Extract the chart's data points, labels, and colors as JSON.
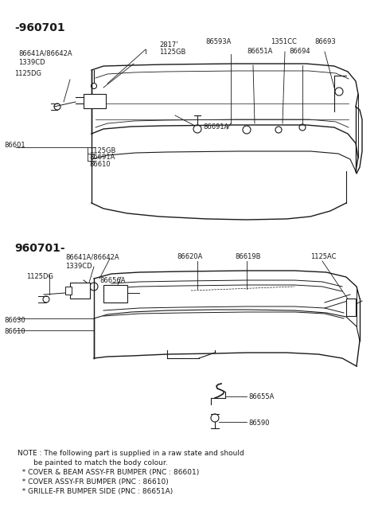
{
  "background_color": "#ffffff",
  "line_color": "#1a1a1a",
  "text_color": "#1a1a1a",
  "section1_label": "-960701",
  "section2_label": "960701-",
  "note_line1": "NOTE : The following part is supplied in a raw state and should",
  "note_line2": "       be painted to match the body colour.",
  "note_line3": "  * COVER & BEAM ASSY-FR BUMPER (PNC : 86601)",
  "note_line4": "  * COVER ASSY-FR BUMPER (PNC : 86610)",
  "note_line5": "  * GRILLE-FR BUMPER SIDE (PNC : 86651A)",
  "small_fs": 6.0,
  "section_fs": 10.0,
  "note_fs": 6.5
}
